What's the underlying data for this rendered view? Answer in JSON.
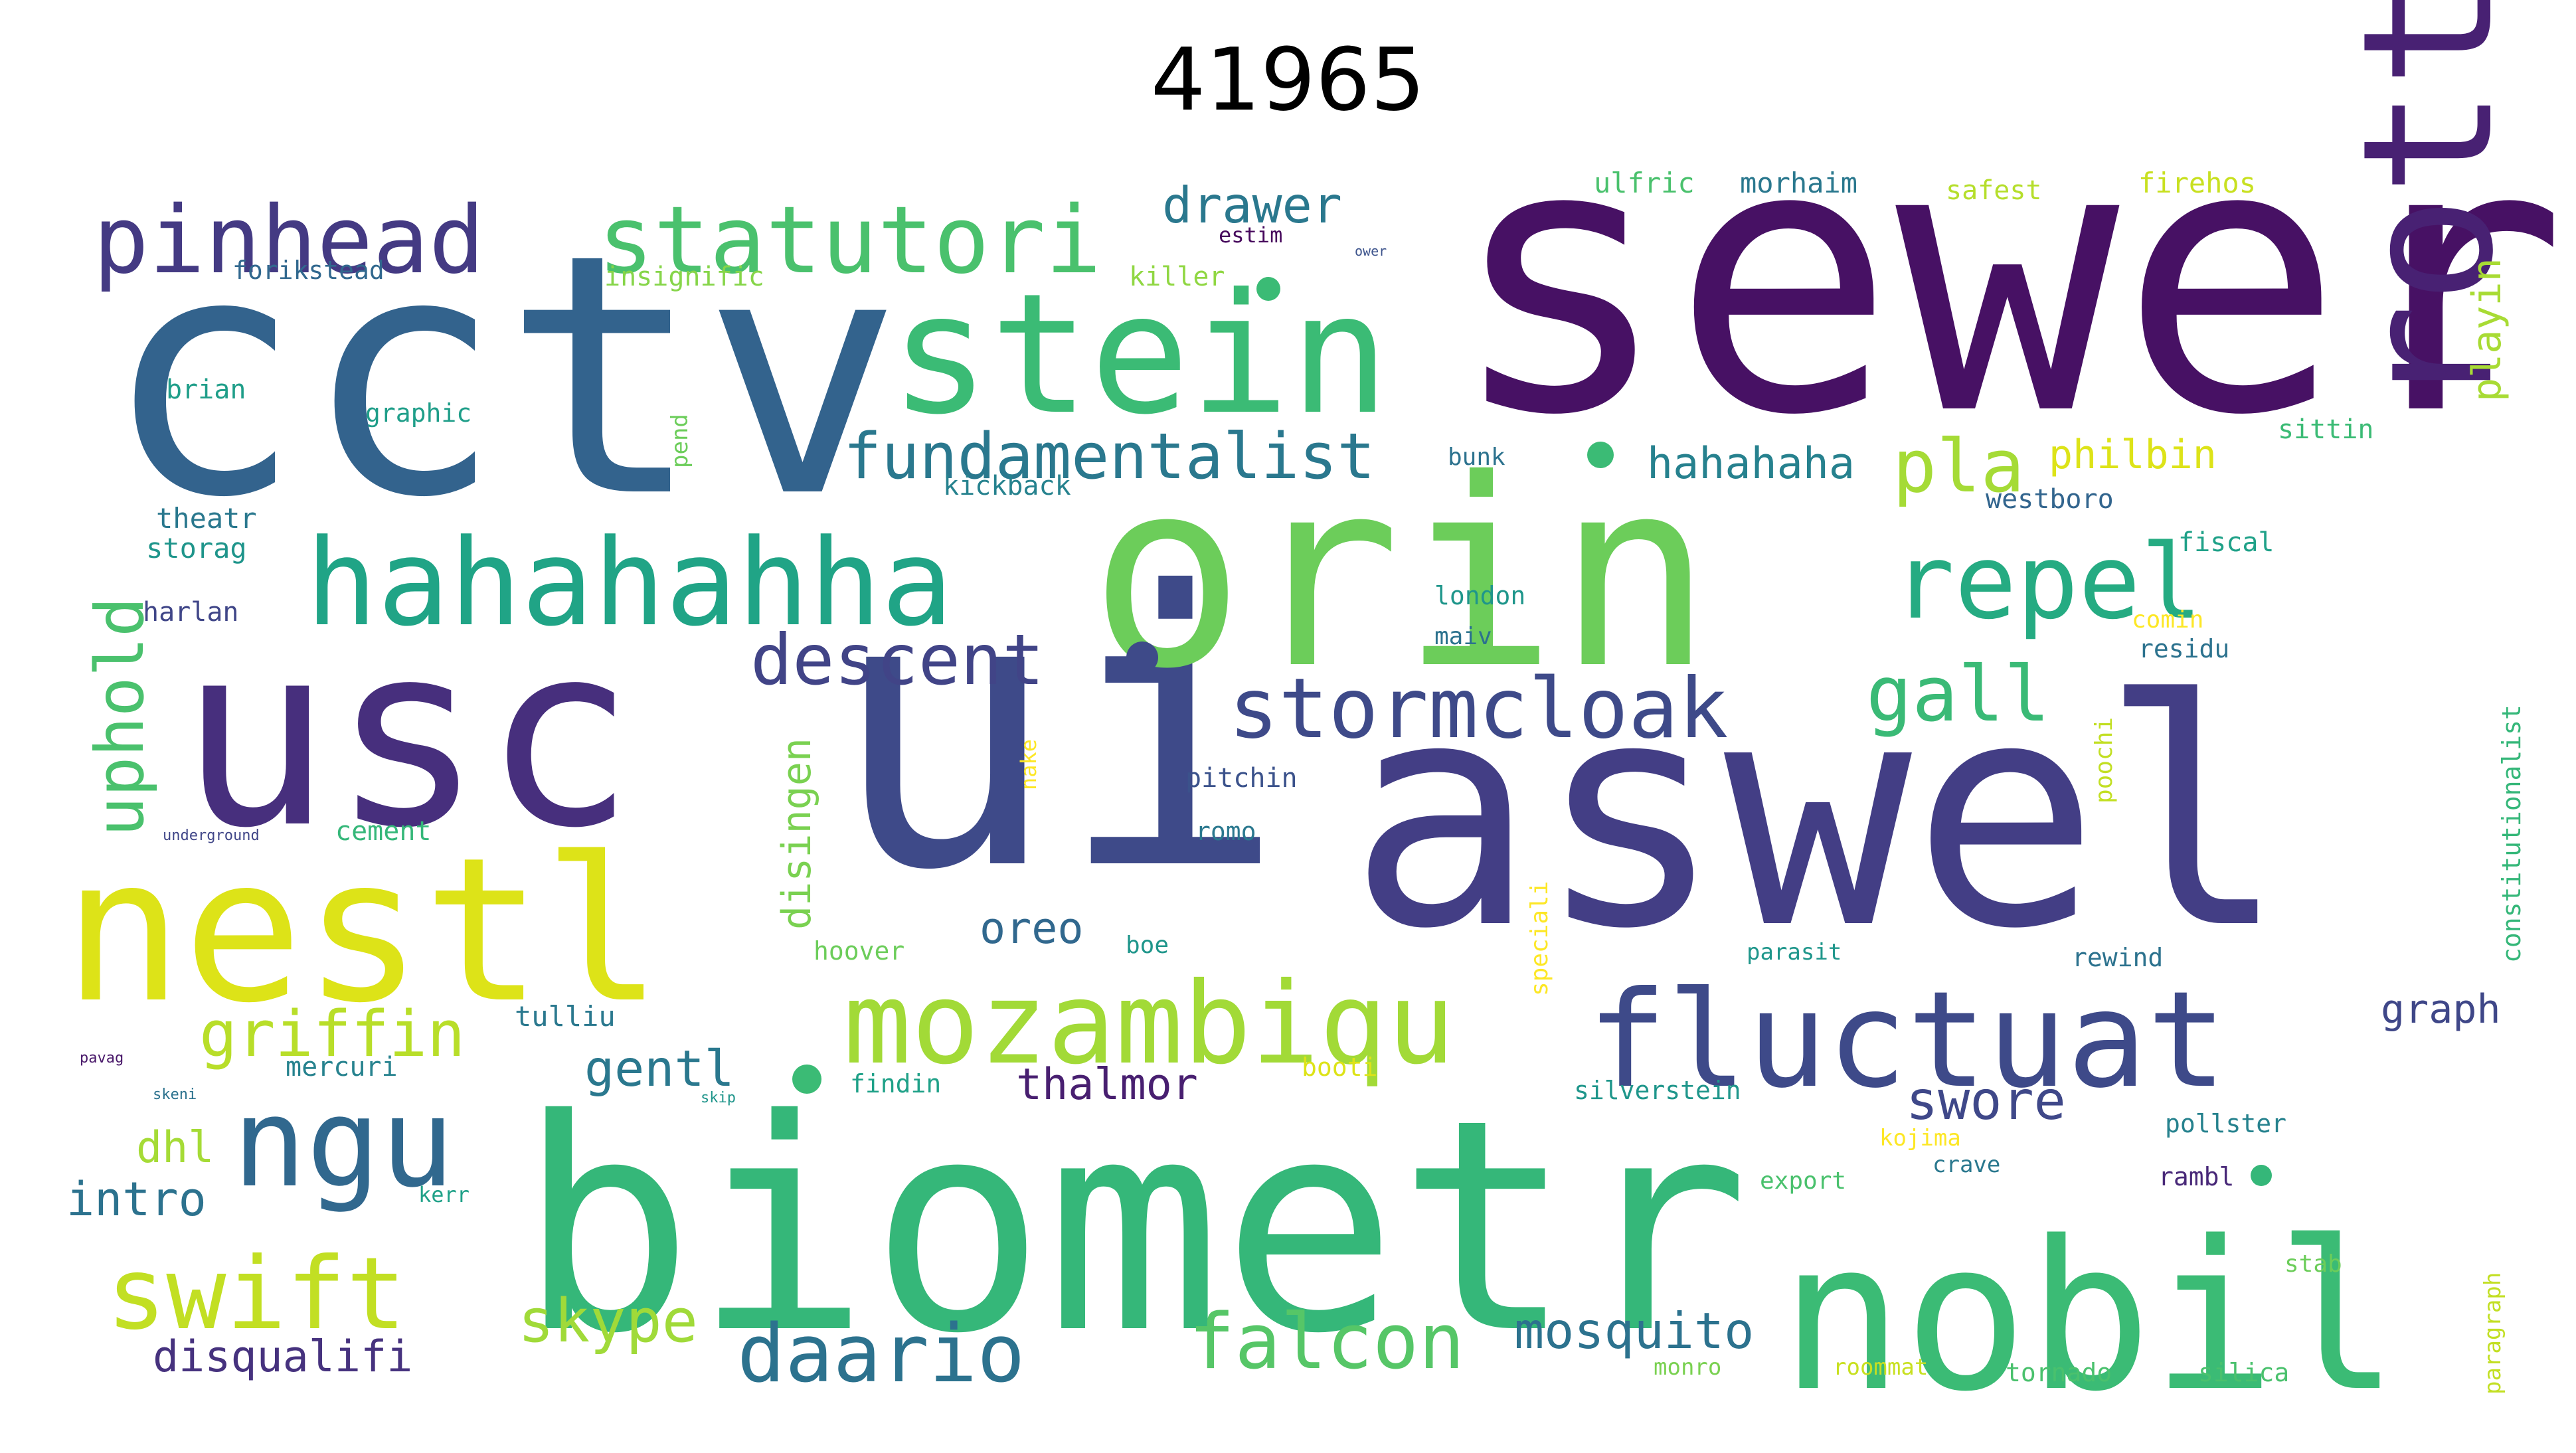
{
  "title": "41965",
  "words": [
    {
      "text": "sewer",
      "color": "#471164"
    },
    {
      "text": "cctv",
      "color": "#33638d"
    },
    {
      "text": "ui",
      "color": "#3e4a89"
    },
    {
      "text": "aswel",
      "color": "#433e85"
    },
    {
      "text": "biometr",
      "color": "#35b779"
    },
    {
      "text": "orin",
      "color": "#6ccd5a"
    },
    {
      "text": "usc",
      "color": "#472f7d"
    },
    {
      "text": "nestl",
      "color": "#dde318"
    },
    {
      "text": "stein",
      "color": "#3bbb75"
    },
    {
      "text": "rotti",
      "color": "#482173"
    },
    {
      "text": "nobil",
      "color": "#3bbb75"
    },
    {
      "text": "hahahahha",
      "color": "#20a486"
    },
    {
      "text": "fluctuat",
      "color": "#3e4a89"
    },
    {
      "text": "mozambiqu",
      "color": "#a2da37"
    },
    {
      "text": "ngu",
      "color": "#31688e"
    },
    {
      "text": "pinhead",
      "color": "#443a83"
    },
    {
      "text": "statutori",
      "color": "#4ac16d"
    },
    {
      "text": "repel",
      "color": "#25ab82"
    },
    {
      "text": "swift",
      "color": "#c2df23"
    },
    {
      "text": "fundamentalist",
      "color": "#2a788e"
    },
    {
      "text": "stormcloak",
      "color": "#3e4a89"
    },
    {
      "text": "daario",
      "color": "#2c728e"
    },
    {
      "text": "falcon",
      "color": "#56c667"
    },
    {
      "text": "descent",
      "color": "#414487"
    },
    {
      "text": "gall",
      "color": "#3aba76"
    },
    {
      "text": "pla",
      "color": "#a5db36"
    },
    {
      "text": "uphold",
      "color": "#4ac16d"
    },
    {
      "text": "griffin",
      "color": "#b8de29"
    },
    {
      "text": "gentl",
      "color": "#2a788e"
    },
    {
      "text": "swore",
      "color": "#3f4889"
    },
    {
      "text": "skype",
      "color": "#a0da39"
    },
    {
      "text": "mosquito",
      "color": "#2c728e"
    },
    {
      "text": "drawer",
      "color": "#2a788e"
    },
    {
      "text": "hahahaha",
      "color": "#26818e"
    },
    {
      "text": "disqualifi",
      "color": "#46327e"
    },
    {
      "text": "thalmor",
      "color": "#481f70"
    },
    {
      "text": "oreo",
      "color": "#31688e"
    },
    {
      "text": "intro",
      "color": "#2c728e"
    },
    {
      "text": "dhl",
      "color": "#a5db36"
    },
    {
      "text": "philbin",
      "color": "#dde318"
    },
    {
      "text": "graph",
      "color": "#3f4788"
    },
    {
      "text": "disingen",
      "color": "#7ad151"
    },
    {
      "text": "playin",
      "color": "#a8db34"
    },
    {
      "text": "forikstead",
      "color": "#31688e"
    },
    {
      "text": "insignific",
      "color": "#86d549"
    },
    {
      "text": "killer",
      "color": "#90d743"
    },
    {
      "text": "estim",
      "color": "#46085c"
    },
    {
      "text": "ulfric",
      "color": "#4ac16d"
    },
    {
      "text": "morhaim",
      "color": "#2a788e"
    },
    {
      "text": "safest",
      "color": "#b5de2b"
    },
    {
      "text": "firehos",
      "color": "#c8e020"
    },
    {
      "text": "brian",
      "color": "#1f9e89"
    },
    {
      "text": "graphic",
      "color": "#1f9e89"
    },
    {
      "text": "pend",
      "color": "#6ccd5a"
    },
    {
      "text": "bunk",
      "color": "#2c728e"
    },
    {
      "text": "kickback",
      "color": "#26828e"
    },
    {
      "text": "westboro",
      "color": "#32658e"
    },
    {
      "text": "sittin",
      "color": "#3bbb75"
    },
    {
      "text": "theatr",
      "color": "#2a788e"
    },
    {
      "text": "storag",
      "color": "#1f958b"
    },
    {
      "text": "harlan",
      "color": "#404688"
    },
    {
      "text": "fiscal",
      "color": "#1fa188"
    },
    {
      "text": "london",
      "color": "#1f968b"
    },
    {
      "text": "maiv",
      "color": "#2c728e"
    },
    {
      "text": "comin",
      "color": "#fde725"
    },
    {
      "text": "residu",
      "color": "#2c728e"
    },
    {
      "text": "constitutionalist",
      "color": "#35b779"
    },
    {
      "text": "pitchin",
      "color": "#3b528b"
    },
    {
      "text": "nake",
      "color": "#fde725"
    },
    {
      "text": "poochi",
      "color": "#c2df23"
    },
    {
      "text": "speciali",
      "color": "#fde725"
    },
    {
      "text": "romo",
      "color": "#2a788e"
    },
    {
      "text": "underground",
      "color": "#404688"
    },
    {
      "text": "cement",
      "color": "#35b779"
    },
    {
      "text": "hoover",
      "color": "#6ccd5a"
    },
    {
      "text": "boe",
      "color": "#1f968b"
    },
    {
      "text": "parasit",
      "color": "#1f968b"
    },
    {
      "text": "rewind",
      "color": "#2c728e"
    },
    {
      "text": "tulliu",
      "color": "#2a788e"
    },
    {
      "text": "mercuri",
      "color": "#26828e"
    },
    {
      "text": "findin",
      "color": "#1fa188"
    },
    {
      "text": "booti",
      "color": "#dde318"
    },
    {
      "text": "silverstein",
      "color": "#1f968b"
    },
    {
      "text": "pollster",
      "color": "#26828e"
    },
    {
      "text": "kojima",
      "color": "#fde725"
    },
    {
      "text": "crave",
      "color": "#2a788e"
    },
    {
      "text": "export",
      "color": "#4ac16d"
    },
    {
      "text": "rambl",
      "color": "#482878"
    },
    {
      "text": "kerr",
      "color": "#1fa188"
    },
    {
      "text": "stab",
      "color": "#6ccd5a"
    },
    {
      "text": "paragraph",
      "color": "#c2df23"
    },
    {
      "text": "monro",
      "color": "#7ad151"
    },
    {
      "text": "roommat",
      "color": "#c8e020"
    },
    {
      "text": "tornado",
      "color": "#4ac16d"
    },
    {
      "text": "silica",
      "color": "#4ac16d"
    },
    {
      "text": "pavag",
      "color": "#481769"
    },
    {
      "text": "skeni",
      "color": "#2c728e"
    },
    {
      "text": "skip",
      "color": "#1f958b"
    },
    {
      "text": "ower",
      "color": "#3b528b"
    }
  ]
}
